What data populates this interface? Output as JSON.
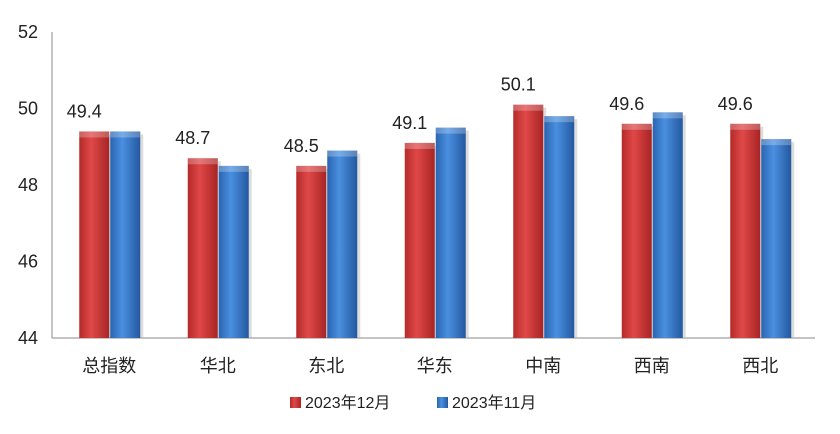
{
  "chart_data": {
    "type": "bar",
    "categories": [
      "总指数",
      "华北",
      "东北",
      "华东",
      "中南",
      "西南",
      "西北"
    ],
    "series": [
      {
        "name": "2023年12月",
        "values": [
          49.4,
          48.7,
          48.5,
          49.1,
          50.1,
          49.6,
          49.6
        ],
        "color": "#d63c3c",
        "labels": [
          "49.4",
          "48.7",
          "48.5",
          "49.1",
          "50.1",
          "49.6",
          "49.6"
        ]
      },
      {
        "name": "2023年11月",
        "values": [
          49.4,
          48.5,
          48.9,
          49.5,
          49.8,
          49.9,
          49.2
        ],
        "color": "#3a7fd4"
      }
    ],
    "ylim": [
      44,
      52
    ],
    "yticks": [
      "44",
      "46",
      "48",
      "50",
      "52"
    ],
    "grid": false,
    "legend": "bottom"
  }
}
